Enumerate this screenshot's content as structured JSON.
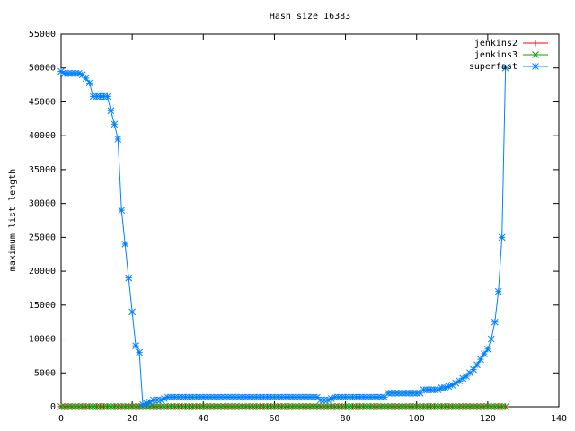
{
  "chart_data": {
    "type": "line",
    "title": "Hash size 16383",
    "y_label": "maximum list length",
    "x": [
      0,
      1,
      2,
      3,
      4,
      5,
      6,
      7,
      8,
      9,
      10,
      11,
      12,
      13,
      14,
      15,
      16,
      17,
      18,
      19,
      20,
      21,
      22,
      23,
      24,
      25,
      26,
      27,
      28,
      29,
      30,
      31,
      32,
      33,
      34,
      35,
      36,
      37,
      38,
      39,
      40,
      41,
      42,
      43,
      44,
      45,
      46,
      47,
      48,
      49,
      50,
      51,
      52,
      53,
      54,
      55,
      56,
      57,
      58,
      59,
      60,
      61,
      62,
      63,
      64,
      65,
      66,
      67,
      68,
      69,
      70,
      71,
      72,
      73,
      74,
      75,
      76,
      77,
      78,
      79,
      80,
      81,
      82,
      83,
      84,
      85,
      86,
      87,
      88,
      89,
      90,
      91,
      92,
      93,
      94,
      95,
      96,
      97,
      98,
      99,
      100,
      101,
      102,
      103,
      104,
      105,
      106,
      107,
      108,
      109,
      110,
      111,
      112,
      113,
      114,
      115,
      116,
      117,
      118,
      119,
      120,
      121,
      122,
      123,
      124,
      125
    ],
    "series": [
      {
        "name": "jenkins2",
        "color": "#ff0000",
        "marker": "plus",
        "values": [
          10,
          10,
          10,
          10,
          10,
          10,
          10,
          10,
          10,
          10,
          10,
          10,
          10,
          10,
          10,
          10,
          10,
          10,
          10,
          10,
          10,
          10,
          10,
          10,
          10,
          10,
          10,
          10,
          10,
          10,
          10,
          10,
          10,
          10,
          10,
          10,
          10,
          10,
          10,
          10,
          10,
          10,
          10,
          10,
          10,
          10,
          10,
          10,
          10,
          10,
          10,
          10,
          10,
          10,
          10,
          10,
          10,
          10,
          10,
          10,
          10,
          10,
          10,
          10,
          10,
          10,
          10,
          10,
          10,
          10,
          10,
          10,
          10,
          10,
          10,
          10,
          10,
          10,
          10,
          10,
          10,
          10,
          10,
          10,
          10,
          10,
          10,
          10,
          10,
          10,
          10,
          10,
          10,
          10,
          10,
          10,
          10,
          10,
          10,
          10,
          10,
          10,
          10,
          10,
          10,
          10,
          10,
          10,
          10,
          10,
          10,
          10,
          10,
          10,
          10,
          10,
          10,
          10,
          10,
          10,
          10,
          10,
          10,
          10,
          10,
          10
        ]
      },
      {
        "name": "jenkins3",
        "color": "#00a000",
        "marker": "cross",
        "values": [
          10,
          10,
          10,
          10,
          10,
          10,
          10,
          10,
          10,
          10,
          10,
          10,
          10,
          10,
          10,
          10,
          10,
          10,
          10,
          10,
          10,
          10,
          10,
          10,
          10,
          10,
          10,
          10,
          10,
          10,
          10,
          10,
          10,
          10,
          10,
          10,
          10,
          10,
          10,
          10,
          10,
          10,
          10,
          10,
          10,
          10,
          10,
          10,
          10,
          10,
          10,
          10,
          10,
          10,
          10,
          10,
          10,
          10,
          10,
          10,
          10,
          10,
          10,
          10,
          10,
          10,
          10,
          10,
          10,
          10,
          10,
          10,
          10,
          10,
          10,
          10,
          10,
          10,
          10,
          10,
          10,
          10,
          10,
          10,
          10,
          10,
          10,
          10,
          10,
          10,
          10,
          10,
          10,
          10,
          10,
          10,
          10,
          10,
          10,
          10,
          10,
          10,
          10,
          10,
          10,
          10,
          10,
          10,
          10,
          10,
          10,
          10,
          10,
          10,
          10,
          10,
          10,
          10,
          10,
          10,
          10,
          10,
          10,
          10,
          10,
          10
        ]
      },
      {
        "name": "superfast",
        "color": "#0080ff",
        "marker": "star",
        "values": [
          49500,
          49200,
          49200,
          49200,
          49200,
          49200,
          49000,
          48500,
          47800,
          45800,
          45800,
          45800,
          45800,
          45800,
          43700,
          41700,
          39500,
          29000,
          24000,
          19000,
          14000,
          9000,
          8000,
          300,
          500,
          700,
          1000,
          1000,
          1000,
          1200,
          1400,
          1400,
          1400,
          1400,
          1400,
          1400,
          1400,
          1400,
          1400,
          1400,
          1400,
          1400,
          1400,
          1400,
          1400,
          1400,
          1400,
          1400,
          1400,
          1400,
          1400,
          1400,
          1400,
          1400,
          1400,
          1400,
          1400,
          1400,
          1400,
          1400,
          1400,
          1400,
          1400,
          1400,
          1400,
          1400,
          1400,
          1400,
          1400,
          1400,
          1400,
          1400,
          1400,
          1000,
          1000,
          1000,
          1200,
          1400,
          1400,
          1400,
          1400,
          1400,
          1400,
          1400,
          1400,
          1400,
          1400,
          1400,
          1400,
          1400,
          1400,
          1400,
          2000,
          2000,
          2000,
          2000,
          2000,
          2000,
          2000,
          2000,
          2000,
          2000,
          2500,
          2500,
          2500,
          2500,
          2500,
          2800,
          2800,
          3000,
          3200,
          3500,
          3800,
          4200,
          4500,
          5000,
          5500,
          6200,
          7000,
          7800,
          8500,
          10000,
          12500,
          17000,
          25000,
          50000
        ]
      }
    ],
    "xlim": [
      0,
      140
    ],
    "xticks": [
      0,
      20,
      40,
      60,
      80,
      100,
      120,
      140
    ],
    "ylim": [
      0,
      55000
    ],
    "yticks": [
      0,
      5000,
      10000,
      15000,
      20000,
      25000,
      30000,
      35000,
      40000,
      45000,
      50000,
      55000
    ],
    "legend": "top-right"
  }
}
